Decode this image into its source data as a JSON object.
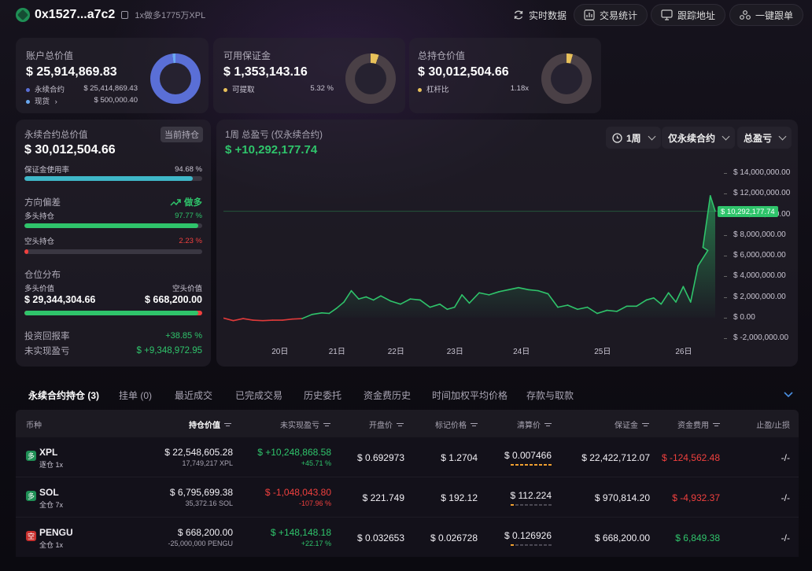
{
  "header": {
    "address": "0x1527...a7c2",
    "subtitle": "1x做多1775万XPL",
    "buttons": [
      {
        "label": "实时数据",
        "icon": "refresh-icon"
      },
      {
        "label": "交易统计",
        "icon": "stats-icon"
      },
      {
        "label": "跟踪地址",
        "icon": "monitor-icon"
      },
      {
        "label": "一键跟单",
        "icon": "copy-trade-icon"
      }
    ]
  },
  "summary": {
    "account": {
      "label": "账户总价值",
      "value": "$ 25,914,869.83",
      "rows": [
        {
          "name": "永续合约",
          "value": "$ 25,414,869.43",
          "color": "#5a6fd6"
        },
        {
          "name": "现货",
          "value": "$ 500,000.40",
          "color": "#6aa8f0",
          "chevron": "›"
        }
      ],
      "perp_share": 0.981
    },
    "margin": {
      "label": "可用保证金",
      "value": "$ 1,353,143.16",
      "rows": [
        {
          "name": "可提取",
          "value": "5.32 %",
          "color": "#e8c15a"
        }
      ],
      "share": 0.0532
    },
    "position": {
      "label": "总持仓价值",
      "value": "$ 30,012,504.66",
      "rows": [
        {
          "name": "杠杆比",
          "value": "1.18x",
          "color": "#e8c15a"
        }
      ],
      "share": 0.04
    }
  },
  "perp": {
    "label": "永续合约总价值",
    "badge": "当前持仓",
    "value": "$ 30,012,504.66",
    "margin_usage_label": "保证金使用率",
    "margin_usage": "94.68 %",
    "margin_usage_pct": 94.68,
    "bias_label": "方向偏差",
    "bias_value": "做多",
    "long_label": "多头持仓",
    "long_pct": "97.77 %",
    "long_pct_num": 97.77,
    "short_label": "空头持仓",
    "short_pct": "2.23 %",
    "short_pct_num": 2.23,
    "dist_label": "仓位分布",
    "long_value_label": "多头价值",
    "short_value_label": "空头价值",
    "long_value": "$ 29,344,304.66",
    "short_value": "$ 668,200.00",
    "long_share": 97.77,
    "roi_label": "投资回报率",
    "roi": "+38.85 %",
    "upnl_label": "未实现盈亏",
    "upnl": "$ +9,348,972.95"
  },
  "chart_panel": {
    "title": "1周 总盈亏 (仅永续合约)",
    "value": "$ +10,292,177.74",
    "dropdowns": [
      "1周",
      "仅永续合约",
      "总盈亏"
    ],
    "current_label": "$ 10,292,177.74"
  },
  "chart_data": {
    "type": "area",
    "ylabel": "",
    "ylim": [
      -2000000,
      14000000
    ],
    "yticks": [
      "$ 14,000,000.00",
      "$ 12,000,000.00",
      "$ 10,000,000.00",
      "$ 8,000,000.00",
      "$ 6,000,000.00",
      "$ 4,000,000.00",
      "$ 2,000,000.00",
      "$ 0.00",
      "$ -2,000,000.00"
    ],
    "ytick_values": [
      14000000,
      12000000,
      10000000,
      8000000,
      6000000,
      4000000,
      2000000,
      0,
      -2000000
    ],
    "xticks": [
      "20日",
      "21日",
      "22日",
      "23日",
      "24日",
      "25日",
      "26日"
    ],
    "xtick_positions": [
      0.114,
      0.23,
      0.35,
      0.47,
      0.605,
      0.77,
      0.935
    ],
    "x": [
      0,
      0.02,
      0.04,
      0.06,
      0.08,
      0.1,
      0.12,
      0.14,
      0.16,
      0.18,
      0.2,
      0.215,
      0.23,
      0.245,
      0.26,
      0.275,
      0.29,
      0.305,
      0.32,
      0.34,
      0.36,
      0.38,
      0.4,
      0.42,
      0.44,
      0.455,
      0.47,
      0.485,
      0.5,
      0.52,
      0.54,
      0.56,
      0.58,
      0.6,
      0.62,
      0.64,
      0.66,
      0.68,
      0.7,
      0.72,
      0.74,
      0.76,
      0.78,
      0.8,
      0.82,
      0.84,
      0.86,
      0.875,
      0.89,
      0.905,
      0.92,
      0.935,
      0.95,
      0.965,
      0.985
    ],
    "series": [
      {
        "values": [
          -50000,
          -300000,
          -100000,
          -250000,
          -300000,
          -250000,
          -250000,
          -150000,
          -100000,
          300000,
          450000,
          400000,
          900000,
          1500000,
          2600000,
          1800000,
          2000000,
          1700000,
          2100000,
          1600000,
          1300000,
          1800000,
          1700000,
          1000000,
          1300000,
          800000,
          1000000,
          2200000,
          1400000,
          2400000,
          2200000,
          2500000,
          2700000,
          2900000,
          2700000,
          2600000,
          2300000,
          1000000,
          1200000,
          800000,
          1000000,
          400000,
          700000,
          600000,
          1100000,
          1100000,
          1700000,
          1900000,
          1300000,
          2400000,
          1500000,
          3000000,
          1500000,
          5000000,
          6500000
        ]
      }
    ],
    "tail_values": [
      6800000,
      11800000,
      10300000
    ],
    "tail_x": [
      0.975,
      0.99,
      1.0
    ]
  },
  "tabs": [
    {
      "label": "永续合约持仓 (3)",
      "active": true
    },
    {
      "label": "挂单 (0)"
    },
    {
      "label": "最近成交"
    },
    {
      "label": "已完成交易"
    },
    {
      "label": "历史委托"
    },
    {
      "label": "资金费历史"
    },
    {
      "label": "时间加权平均价格"
    },
    {
      "label": "存款与取款"
    }
  ],
  "table": {
    "headers": [
      "币种",
      "持仓价值",
      "未实现盈亏",
      "开盘价",
      "标记价格",
      "清算价",
      "保证金",
      "资金费用",
      "止盈/止损"
    ],
    "rows": [
      {
        "side": "多",
        "side_color": "#1f8f55",
        "coin": "XPL",
        "mode": "逐仓 1x",
        "value": "$ 22,548,605.28",
        "size": "17,749,217 XPL",
        "pnl": "$ +10,248,868.58",
        "pnl_pct": "+45.71 %",
        "pnl_color": "#2fc46b",
        "open": "$ 0.692973",
        "mark": "$ 1.2704",
        "liq": "$ 0.007466",
        "liq_level": 1.0,
        "margin": "$ 22,422,712.07",
        "funding": "$ -124,562.48",
        "funding_color": "#f0403e",
        "tpsl": "-/-"
      },
      {
        "side": "多",
        "side_color": "#1f8f55",
        "coin": "SOL",
        "mode": "全仓 7x",
        "value": "$ 6,795,699.38",
        "size": "35,372.16 SOL",
        "pnl": "$ -1,048,043.80",
        "pnl_pct": "-107.96 %",
        "pnl_color": "#f0403e",
        "open": "$ 221.749",
        "mark": "$ 192.12",
        "liq": "$ 112.224",
        "liq_level": 0.1,
        "margin": "$ 970,814.20",
        "funding": "$ -4,932.37",
        "funding_color": "#f0403e",
        "tpsl": "-/-"
      },
      {
        "side": "空",
        "side_color": "#c8302e",
        "coin": "PENGU",
        "mode": "全仓 1x",
        "value": "$ 668,200.00",
        "size": "-25,000,000 PENGU",
        "pnl": "$ +148,148.18",
        "pnl_pct": "+22.17 %",
        "pnl_color": "#2fc46b",
        "open": "$ 0.032653",
        "mark": "$ 0.026728",
        "liq": "$ 0.126926",
        "liq_level": 0.1,
        "margin": "$ 668,200.00",
        "funding": "$ 6,849.38",
        "funding_color": "#2fc46b",
        "tpsl": "-/-"
      }
    ]
  }
}
